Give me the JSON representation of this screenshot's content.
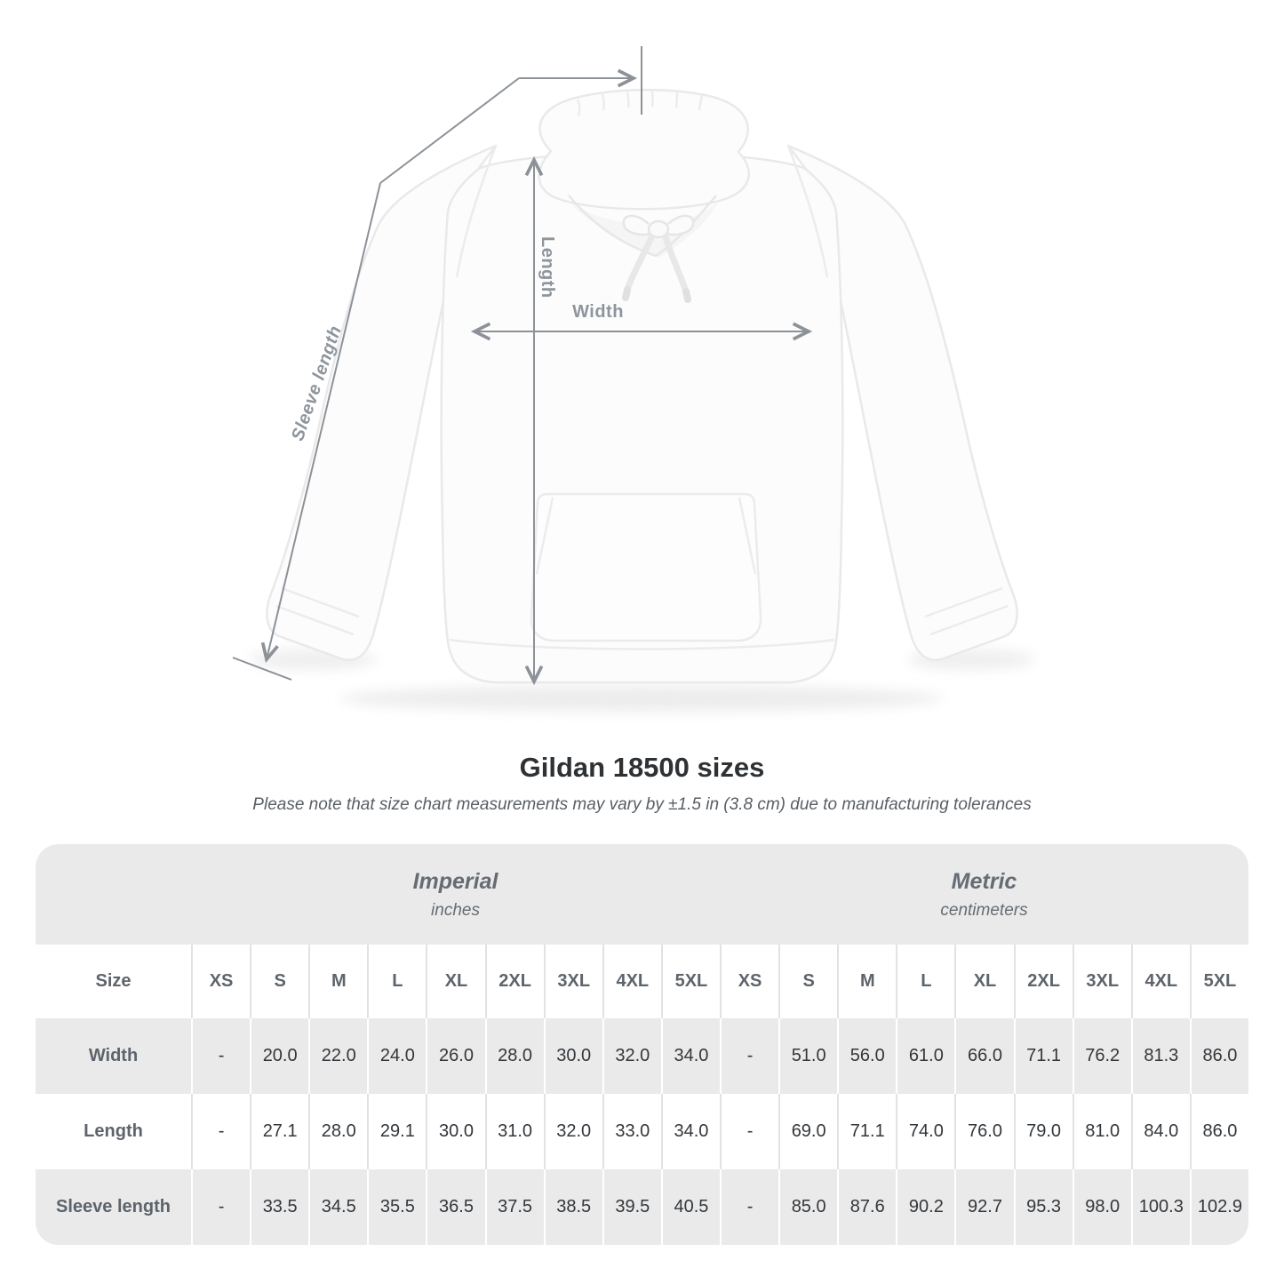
{
  "title": "Gildan 18500 sizes",
  "subtitle": "Please note that size chart measurements may vary by ±1.5 in (3.8 cm) due to manufacturing tolerances",
  "diagram": {
    "width_label": "Width",
    "length_label": "Length",
    "sleeve_label": "Sleeve length"
  },
  "table": {
    "size_col_header": "Size",
    "sizes": [
      "XS",
      "S",
      "M",
      "L",
      "XL",
      "2XL",
      "3XL",
      "4XL",
      "5XL"
    ],
    "unit_groups": [
      {
        "name": "Imperial",
        "unit": "inches"
      },
      {
        "name": "Metric",
        "unit": "centimeters"
      }
    ],
    "rows": [
      {
        "label": "Width",
        "imperial": [
          "-",
          "20.0",
          "22.0",
          "24.0",
          "26.0",
          "28.0",
          "30.0",
          "32.0",
          "34.0"
        ],
        "metric": [
          "-",
          "51.0",
          "56.0",
          "61.0",
          "66.0",
          "71.1",
          "76.2",
          "81.3",
          "86.0"
        ]
      },
      {
        "label": "Length",
        "imperial": [
          "-",
          "27.1",
          "28.0",
          "29.1",
          "30.0",
          "31.0",
          "32.0",
          "33.0",
          "34.0"
        ],
        "metric": [
          "-",
          "69.0",
          "71.1",
          "74.0",
          "76.0",
          "79.0",
          "81.0",
          "84.0",
          "86.0"
        ]
      },
      {
        "label": "Sleeve length",
        "imperial": [
          "-",
          "33.5",
          "34.5",
          "35.5",
          "36.5",
          "37.5",
          "38.5",
          "39.5",
          "40.5"
        ],
        "metric": [
          "-",
          "85.0",
          "87.6",
          "90.2",
          "92.7",
          "95.3",
          "98.0",
          "100.3",
          "102.9"
        ]
      }
    ]
  },
  "colors": {
    "annotation_line": "#8c9298",
    "annotation_label": "#8e959c",
    "table_gray": "#eaeaea",
    "table_white": "#ffffff",
    "header_text": "#5d646b",
    "value_text": "#33373b",
    "title_text": "#2f3235",
    "subtitle_text": "#595e64"
  }
}
